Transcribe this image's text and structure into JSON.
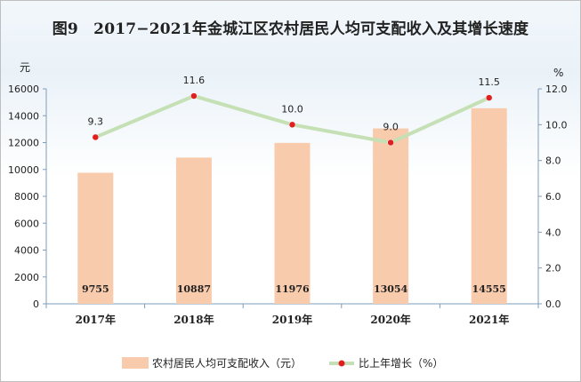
{
  "chart_data": {
    "type": "bar",
    "title": "图9　2017−2021年金城江区农村居民人均可支配收入及其增长速度",
    "categories": [
      "2017年",
      "2018年",
      "2019年",
      "2020年",
      "2021年"
    ],
    "y_left": {
      "unit": "元",
      "ylim": [
        0,
        16000
      ],
      "ticks": [
        0,
        2000,
        4000,
        6000,
        8000,
        10000,
        12000,
        14000,
        16000
      ]
    },
    "y_right": {
      "unit": "%",
      "ylim": [
        0,
        12.0
      ],
      "ticks": [
        "0.0",
        "2.0",
        "4.0",
        "6.0",
        "8.0",
        "10.0",
        "12.0"
      ]
    },
    "series": [
      {
        "name": "农村居民人均可支配收入（元）",
        "type": "bar",
        "axis": "left",
        "color": "#f9cbad",
        "values": [
          9755,
          10887,
          11976,
          13054,
          14555
        ],
        "labels": [
          "9755",
          "10887",
          "11976",
          "13054",
          "14555"
        ]
      },
      {
        "name": "比上年增长（%）",
        "type": "line",
        "axis": "right",
        "color": "#c5e0b4",
        "marker_color": "#e02020",
        "values": [
          9.3,
          11.6,
          10.0,
          9.0,
          11.5
        ],
        "labels": [
          "9.3",
          "11.6",
          "10.0",
          "9.0",
          "11.5"
        ]
      }
    ],
    "legend_position": "bottom",
    "grid": false
  }
}
